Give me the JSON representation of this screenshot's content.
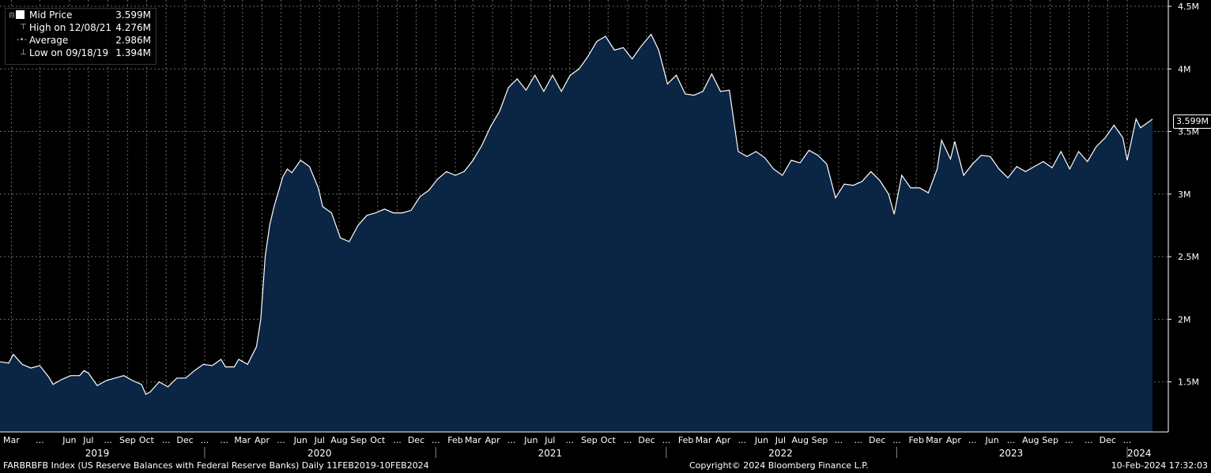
{
  "chart_data": {
    "type": "area",
    "title": "",
    "xlabel": "",
    "ylabel": "",
    "ylim": [
      1100000,
      4500000
    ],
    "x_range": [
      "2019-02-11",
      "2024-02-10"
    ],
    "y_ticks": [
      {
        "value": 1500000,
        "label": "1.5M"
      },
      {
        "value": 2000000,
        "label": "2M"
      },
      {
        "value": 2500000,
        "label": "2.5M"
      },
      {
        "value": 3000000,
        "label": "3M"
      },
      {
        "value": 3500000,
        "label": "3.5M"
      },
      {
        "value": 4000000,
        "label": "4M"
      },
      {
        "value": 4500000,
        "label": "4.5M"
      }
    ],
    "x_month_ticks": [
      {
        "date": "2019-03-01",
        "label": "Mar"
      },
      {
        "date": "2019-04-15",
        "label": "..."
      },
      {
        "date": "2019-06-01",
        "label": "Jun"
      },
      {
        "date": "2019-07-01",
        "label": "Jul"
      },
      {
        "date": "2019-08-01",
        "label": "..."
      },
      {
        "date": "2019-09-01",
        "label": "Sep"
      },
      {
        "date": "2019-10-01",
        "label": "Oct"
      },
      {
        "date": "2019-11-01",
        "label": "..."
      },
      {
        "date": "2019-12-01",
        "label": "Dec"
      },
      {
        "date": "2020-01-01",
        "label": "..."
      },
      {
        "date": "2020-02-01",
        "label": "..."
      },
      {
        "date": "2020-03-01",
        "label": "Mar"
      },
      {
        "date": "2020-04-01",
        "label": "Apr"
      },
      {
        "date": "2020-05-01",
        "label": "..."
      },
      {
        "date": "2020-06-01",
        "label": "Jun"
      },
      {
        "date": "2020-07-01",
        "label": "Jul"
      },
      {
        "date": "2020-08-01",
        "label": "Aug"
      },
      {
        "date": "2020-09-01",
        "label": "Sep"
      },
      {
        "date": "2020-10-01",
        "label": "Oct"
      },
      {
        "date": "2020-11-01",
        "label": "..."
      },
      {
        "date": "2020-12-01",
        "label": "Dec"
      },
      {
        "date": "2021-01-01",
        "label": "..."
      },
      {
        "date": "2021-02-01",
        "label": "Feb"
      },
      {
        "date": "2021-03-01",
        "label": "Mar"
      },
      {
        "date": "2021-04-01",
        "label": "Apr"
      },
      {
        "date": "2021-05-01",
        "label": "..."
      },
      {
        "date": "2021-06-01",
        "label": "Jun"
      },
      {
        "date": "2021-07-01",
        "label": "Jul"
      },
      {
        "date": "2021-08-01",
        "label": "..."
      },
      {
        "date": "2021-09-01",
        "label": "Sep"
      },
      {
        "date": "2021-10-01",
        "label": "Oct"
      },
      {
        "date": "2021-11-01",
        "label": "..."
      },
      {
        "date": "2021-12-01",
        "label": "Dec"
      },
      {
        "date": "2022-01-01",
        "label": "..."
      },
      {
        "date": "2022-02-01",
        "label": "Feb"
      },
      {
        "date": "2022-03-01",
        "label": "Mar"
      },
      {
        "date": "2022-04-01",
        "label": "Apr"
      },
      {
        "date": "2022-05-01",
        "label": "..."
      },
      {
        "date": "2022-06-01",
        "label": "Jun"
      },
      {
        "date": "2022-07-01",
        "label": "Jul"
      },
      {
        "date": "2022-08-01",
        "label": "Aug"
      },
      {
        "date": "2022-09-01",
        "label": "Sep"
      },
      {
        "date": "2022-10-01",
        "label": "..."
      },
      {
        "date": "2022-11-01",
        "label": "..."
      },
      {
        "date": "2022-12-01",
        "label": "Dec"
      },
      {
        "date": "2023-01-01",
        "label": "..."
      },
      {
        "date": "2023-02-01",
        "label": "Feb"
      },
      {
        "date": "2023-03-01",
        "label": "Mar"
      },
      {
        "date": "2023-04-01",
        "label": "Apr"
      },
      {
        "date": "2023-05-01",
        "label": "..."
      },
      {
        "date": "2023-06-01",
        "label": "Jun"
      },
      {
        "date": "2023-07-01",
        "label": "..."
      },
      {
        "date": "2023-08-01",
        "label": "Aug"
      },
      {
        "date": "2023-09-01",
        "label": "Sep"
      },
      {
        "date": "2023-10-01",
        "label": "..."
      },
      {
        "date": "2023-11-01",
        "label": "..."
      },
      {
        "date": "2023-12-01",
        "label": "Dec"
      },
      {
        "date": "2024-01-01",
        "label": "..."
      }
    ],
    "x_year_labels": [
      {
        "date": "2019-07-15",
        "label": "2019"
      },
      {
        "date": "2020-07-01",
        "label": "2020"
      },
      {
        "date": "2021-07-01",
        "label": "2021"
      },
      {
        "date": "2022-07-01",
        "label": "2022"
      },
      {
        "date": "2023-07-01",
        "label": "2023"
      },
      {
        "date": "2024-01-20",
        "label": "2024"
      }
    ],
    "x_year_separators": [
      "2020-01-01",
      "2021-01-01",
      "2022-01-01",
      "2023-01-01",
      "2024-01-01"
    ],
    "series": [
      {
        "name": "Mid Price",
        "color": "#ffffff",
        "fill": "#0b2545",
        "points": [
          [
            "2019-02-11",
            1660000
          ],
          [
            "2019-02-25",
            1650000
          ],
          [
            "2019-03-04",
            1720000
          ],
          [
            "2019-03-18",
            1640000
          ],
          [
            "2019-04-01",
            1610000
          ],
          [
            "2019-04-15",
            1630000
          ],
          [
            "2019-04-29",
            1540000
          ],
          [
            "2019-05-06",
            1480000
          ],
          [
            "2019-05-20",
            1520000
          ],
          [
            "2019-06-03",
            1550000
          ],
          [
            "2019-06-17",
            1550000
          ],
          [
            "2019-06-24",
            1590000
          ],
          [
            "2019-07-01",
            1570000
          ],
          [
            "2019-07-15",
            1470000
          ],
          [
            "2019-07-29",
            1510000
          ],
          [
            "2019-08-12",
            1530000
          ],
          [
            "2019-08-26",
            1550000
          ],
          [
            "2019-09-09",
            1510000
          ],
          [
            "2019-09-23",
            1480000
          ],
          [
            "2019-09-30",
            1400000
          ],
          [
            "2019-10-07",
            1420000
          ],
          [
            "2019-10-21",
            1500000
          ],
          [
            "2019-11-04",
            1460000
          ],
          [
            "2019-11-18",
            1530000
          ],
          [
            "2019-12-02",
            1530000
          ],
          [
            "2019-12-16",
            1590000
          ],
          [
            "2019-12-30",
            1640000
          ],
          [
            "2020-01-13",
            1630000
          ],
          [
            "2020-01-27",
            1680000
          ],
          [
            "2020-02-03",
            1620000
          ],
          [
            "2020-02-17",
            1620000
          ],
          [
            "2020-02-24",
            1680000
          ],
          [
            "2020-03-09",
            1640000
          ],
          [
            "2020-03-16",
            1710000
          ],
          [
            "2020-03-23",
            1780000
          ],
          [
            "2020-03-30",
            2000000
          ],
          [
            "2020-04-06",
            2500000
          ],
          [
            "2020-04-13",
            2750000
          ],
          [
            "2020-04-20",
            2900000
          ],
          [
            "2020-05-04",
            3140000
          ],
          [
            "2020-05-11",
            3200000
          ],
          [
            "2020-05-18",
            3170000
          ],
          [
            "2020-06-01",
            3270000
          ],
          [
            "2020-06-15",
            3220000
          ],
          [
            "2020-06-29",
            3050000
          ],
          [
            "2020-07-06",
            2900000
          ],
          [
            "2020-07-20",
            2850000
          ],
          [
            "2020-08-03",
            2650000
          ],
          [
            "2020-08-17",
            2620000
          ],
          [
            "2020-08-31",
            2750000
          ],
          [
            "2020-09-14",
            2830000
          ],
          [
            "2020-09-28",
            2850000
          ],
          [
            "2020-10-12",
            2880000
          ],
          [
            "2020-10-26",
            2850000
          ],
          [
            "2020-11-09",
            2850000
          ],
          [
            "2020-11-23",
            2870000
          ],
          [
            "2020-12-07",
            2980000
          ],
          [
            "2020-12-21",
            3030000
          ],
          [
            "2021-01-04",
            3120000
          ],
          [
            "2021-01-18",
            3180000
          ],
          [
            "2021-02-01",
            3150000
          ],
          [
            "2021-02-15",
            3180000
          ],
          [
            "2021-03-01",
            3270000
          ],
          [
            "2021-03-15",
            3390000
          ],
          [
            "2021-03-29",
            3540000
          ],
          [
            "2021-04-12",
            3660000
          ],
          [
            "2021-04-26",
            3850000
          ],
          [
            "2021-05-10",
            3920000
          ],
          [
            "2021-05-24",
            3830000
          ],
          [
            "2021-06-07",
            3950000
          ],
          [
            "2021-06-21",
            3820000
          ],
          [
            "2021-07-05",
            3950000
          ],
          [
            "2021-07-19",
            3820000
          ],
          [
            "2021-08-02",
            3950000
          ],
          [
            "2021-08-16",
            4000000
          ],
          [
            "2021-08-30",
            4100000
          ],
          [
            "2021-09-13",
            4220000
          ],
          [
            "2021-09-27",
            4260000
          ],
          [
            "2021-10-11",
            4150000
          ],
          [
            "2021-10-25",
            4170000
          ],
          [
            "2021-11-08",
            4080000
          ],
          [
            "2021-11-22",
            4180000
          ],
          [
            "2021-12-08",
            4276000
          ],
          [
            "2021-12-20",
            4150000
          ],
          [
            "2022-01-03",
            3880000
          ],
          [
            "2022-01-17",
            3950000
          ],
          [
            "2022-01-31",
            3800000
          ],
          [
            "2022-02-14",
            3790000
          ],
          [
            "2022-02-28",
            3820000
          ],
          [
            "2022-03-14",
            3960000
          ],
          [
            "2022-03-28",
            3820000
          ],
          [
            "2022-04-11",
            3830000
          ],
          [
            "2022-04-25",
            3340000
          ],
          [
            "2022-05-09",
            3300000
          ],
          [
            "2022-05-23",
            3340000
          ],
          [
            "2022-06-06",
            3290000
          ],
          [
            "2022-06-20",
            3200000
          ],
          [
            "2022-07-04",
            3150000
          ],
          [
            "2022-07-18",
            3270000
          ],
          [
            "2022-08-01",
            3250000
          ],
          [
            "2022-08-15",
            3350000
          ],
          [
            "2022-08-29",
            3310000
          ],
          [
            "2022-09-12",
            3240000
          ],
          [
            "2022-09-26",
            2970000
          ],
          [
            "2022-10-10",
            3080000
          ],
          [
            "2022-10-24",
            3070000
          ],
          [
            "2022-11-07",
            3100000
          ],
          [
            "2022-11-21",
            3180000
          ],
          [
            "2022-12-05",
            3110000
          ],
          [
            "2022-12-19",
            3000000
          ],
          [
            "2022-12-28",
            2840000
          ],
          [
            "2023-01-09",
            3150000
          ],
          [
            "2023-01-23",
            3050000
          ],
          [
            "2023-02-06",
            3050000
          ],
          [
            "2023-02-20",
            3010000
          ],
          [
            "2023-03-06",
            3200000
          ],
          [
            "2023-03-13",
            3430000
          ],
          [
            "2023-03-27",
            3280000
          ],
          [
            "2023-04-03",
            3420000
          ],
          [
            "2023-04-17",
            3150000
          ],
          [
            "2023-05-01",
            3240000
          ],
          [
            "2023-05-15",
            3310000
          ],
          [
            "2023-05-29",
            3300000
          ],
          [
            "2023-06-12",
            3200000
          ],
          [
            "2023-06-26",
            3130000
          ],
          [
            "2023-07-10",
            3220000
          ],
          [
            "2023-07-24",
            3180000
          ],
          [
            "2023-08-07",
            3220000
          ],
          [
            "2023-08-21",
            3260000
          ],
          [
            "2023-09-04",
            3210000
          ],
          [
            "2023-09-18",
            3340000
          ],
          [
            "2023-10-02",
            3200000
          ],
          [
            "2023-10-16",
            3340000
          ],
          [
            "2023-10-30",
            3260000
          ],
          [
            "2023-11-13",
            3380000
          ],
          [
            "2023-11-27",
            3450000
          ],
          [
            "2023-12-11",
            3550000
          ],
          [
            "2023-12-25",
            3450000
          ],
          [
            "2024-01-01",
            3270000
          ],
          [
            "2024-01-15",
            3600000
          ],
          [
            "2024-01-22",
            3530000
          ],
          [
            "2024-02-05",
            3580000
          ],
          [
            "2024-02-10",
            3599000
          ]
        ]
      }
    ],
    "grid": true,
    "legend_position": "top-left"
  },
  "legend": [
    {
      "label": "Mid Price",
      "value": "3.599M",
      "icon": "solid-square-icon"
    },
    {
      "label": "High on 12/08/21",
      "value": "4.276M",
      "icon": "high-marker-icon"
    },
    {
      "label": "Average",
      "value": "2.986M",
      "icon": "average-line-icon"
    },
    {
      "label": "Low on 09/18/19",
      "value": "1.394M",
      "icon": "low-marker-icon"
    }
  ],
  "last_price_tag": "3.599M",
  "footer": {
    "left": "FARBRBFB Index (US Reserve Balances with Federal Reserve Banks)  Daily 11FEB2019-10FEB2024",
    "center": "Copyright© 2024 Bloomberg Finance L.P.",
    "right": "10-Feb-2024 17:32:03"
  },
  "colors": {
    "background": "#000000",
    "area_fill": "#0b2545",
    "line": "#ffffff",
    "grid": "#6a6a6a"
  }
}
